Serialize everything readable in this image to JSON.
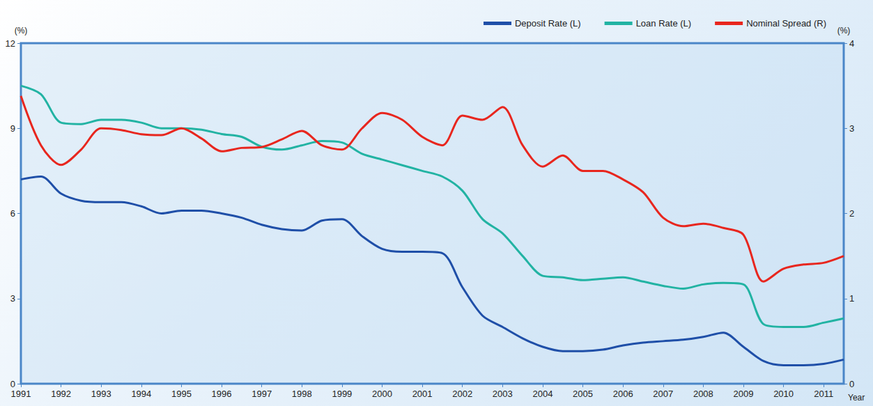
{
  "chart_data": {
    "type": "line",
    "x_label": "Year",
    "y_label": "(%)",
    "y2_label": "(%)",
    "categories": [
      "1991",
      null,
      "1992",
      null,
      "1993",
      null,
      "1994",
      null,
      "1995",
      null,
      "1996",
      null,
      "1997",
      null,
      "1998",
      null,
      "1999",
      null,
      "2000",
      null,
      "2001",
      null,
      "2002",
      null,
      "2003",
      null,
      "2004",
      null,
      "2005",
      null,
      "2006",
      null,
      "2007",
      null,
      "2008",
      null,
      "2009",
      null,
      "2010",
      null,
      "2011",
      null
    ],
    "series": [
      {
        "name": "Deposit Rate (L)",
        "color": "#1f4fa8",
        "axis": "y",
        "values": [
          7.2,
          7.3,
          6.7,
          6.45,
          6.4,
          6.4,
          6.25,
          6.0,
          6.1,
          6.1,
          6.0,
          5.85,
          5.6,
          5.45,
          5.4,
          5.75,
          5.8,
          5.2,
          4.75,
          4.65,
          4.65,
          4.6,
          3.4,
          2.4,
          2.0,
          1.6,
          1.3,
          1.15,
          1.15,
          1.2,
          1.35,
          1.45,
          1.5,
          1.55,
          1.65,
          1.8,
          1.3,
          0.8,
          0.65,
          0.65,
          0.7,
          0.85
        ]
      },
      {
        "name": "Loan Rate (L)",
        "color": "#22b3a3",
        "axis": "y",
        "values": [
          10.5,
          10.2,
          9.2,
          9.15,
          9.3,
          9.3,
          9.2,
          9.0,
          9.0,
          8.95,
          8.8,
          8.7,
          8.35,
          8.25,
          8.4,
          8.55,
          8.5,
          8.1,
          7.9,
          7.7,
          7.5,
          7.3,
          6.8,
          5.8,
          5.3,
          4.5,
          3.8,
          3.75,
          3.65,
          3.7,
          3.75,
          3.6,
          3.45,
          3.35,
          3.5,
          3.55,
          3.5,
          2.1,
          2.0,
          2.0,
          2.15,
          2.3
        ]
      },
      {
        "name": "Nominal Spread (R)",
        "color": "#e8261e",
        "axis": "y2",
        "values": [
          3.38,
          2.8,
          2.57,
          2.75,
          3.0,
          2.98,
          2.93,
          2.92,
          3.0,
          2.88,
          2.73,
          2.77,
          2.78,
          2.87,
          2.97,
          2.8,
          2.75,
          3.0,
          3.18,
          3.1,
          2.9,
          2.8,
          3.15,
          3.1,
          3.25,
          2.8,
          2.55,
          2.68,
          2.5,
          2.5,
          2.4,
          2.25,
          1.95,
          1.85,
          1.88,
          1.83,
          1.75,
          1.2,
          1.35,
          1.4,
          1.42,
          1.5
        ]
      }
    ],
    "ylim": [
      0,
      12
    ],
    "yticks": [
      0,
      3,
      6,
      9,
      12
    ],
    "y2lim": [
      0,
      4
    ],
    "y2ticks": [
      0,
      1,
      2,
      3,
      4
    ],
    "legend": "top right",
    "grid": false
  }
}
